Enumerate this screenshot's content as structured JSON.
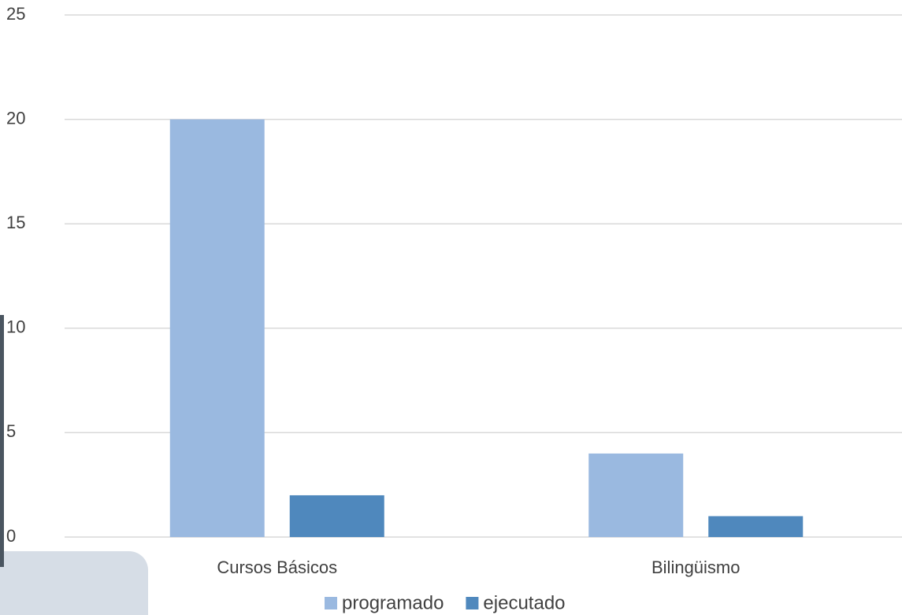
{
  "chart_data": {
    "type": "bar",
    "categories": [
      "Cursos Básicos",
      "Bilingüismo"
    ],
    "series": [
      {
        "name": "programado",
        "color": "#9ab9e0",
        "values": [
          20,
          4
        ]
      },
      {
        "name": "ejecutado",
        "color": "#4f88bd",
        "values": [
          2,
          1
        ]
      }
    ],
    "ylim": [
      0,
      25
    ],
    "yticks": [
      0,
      5,
      10,
      15,
      20,
      25
    ],
    "grid": true,
    "legend": "bottom"
  }
}
